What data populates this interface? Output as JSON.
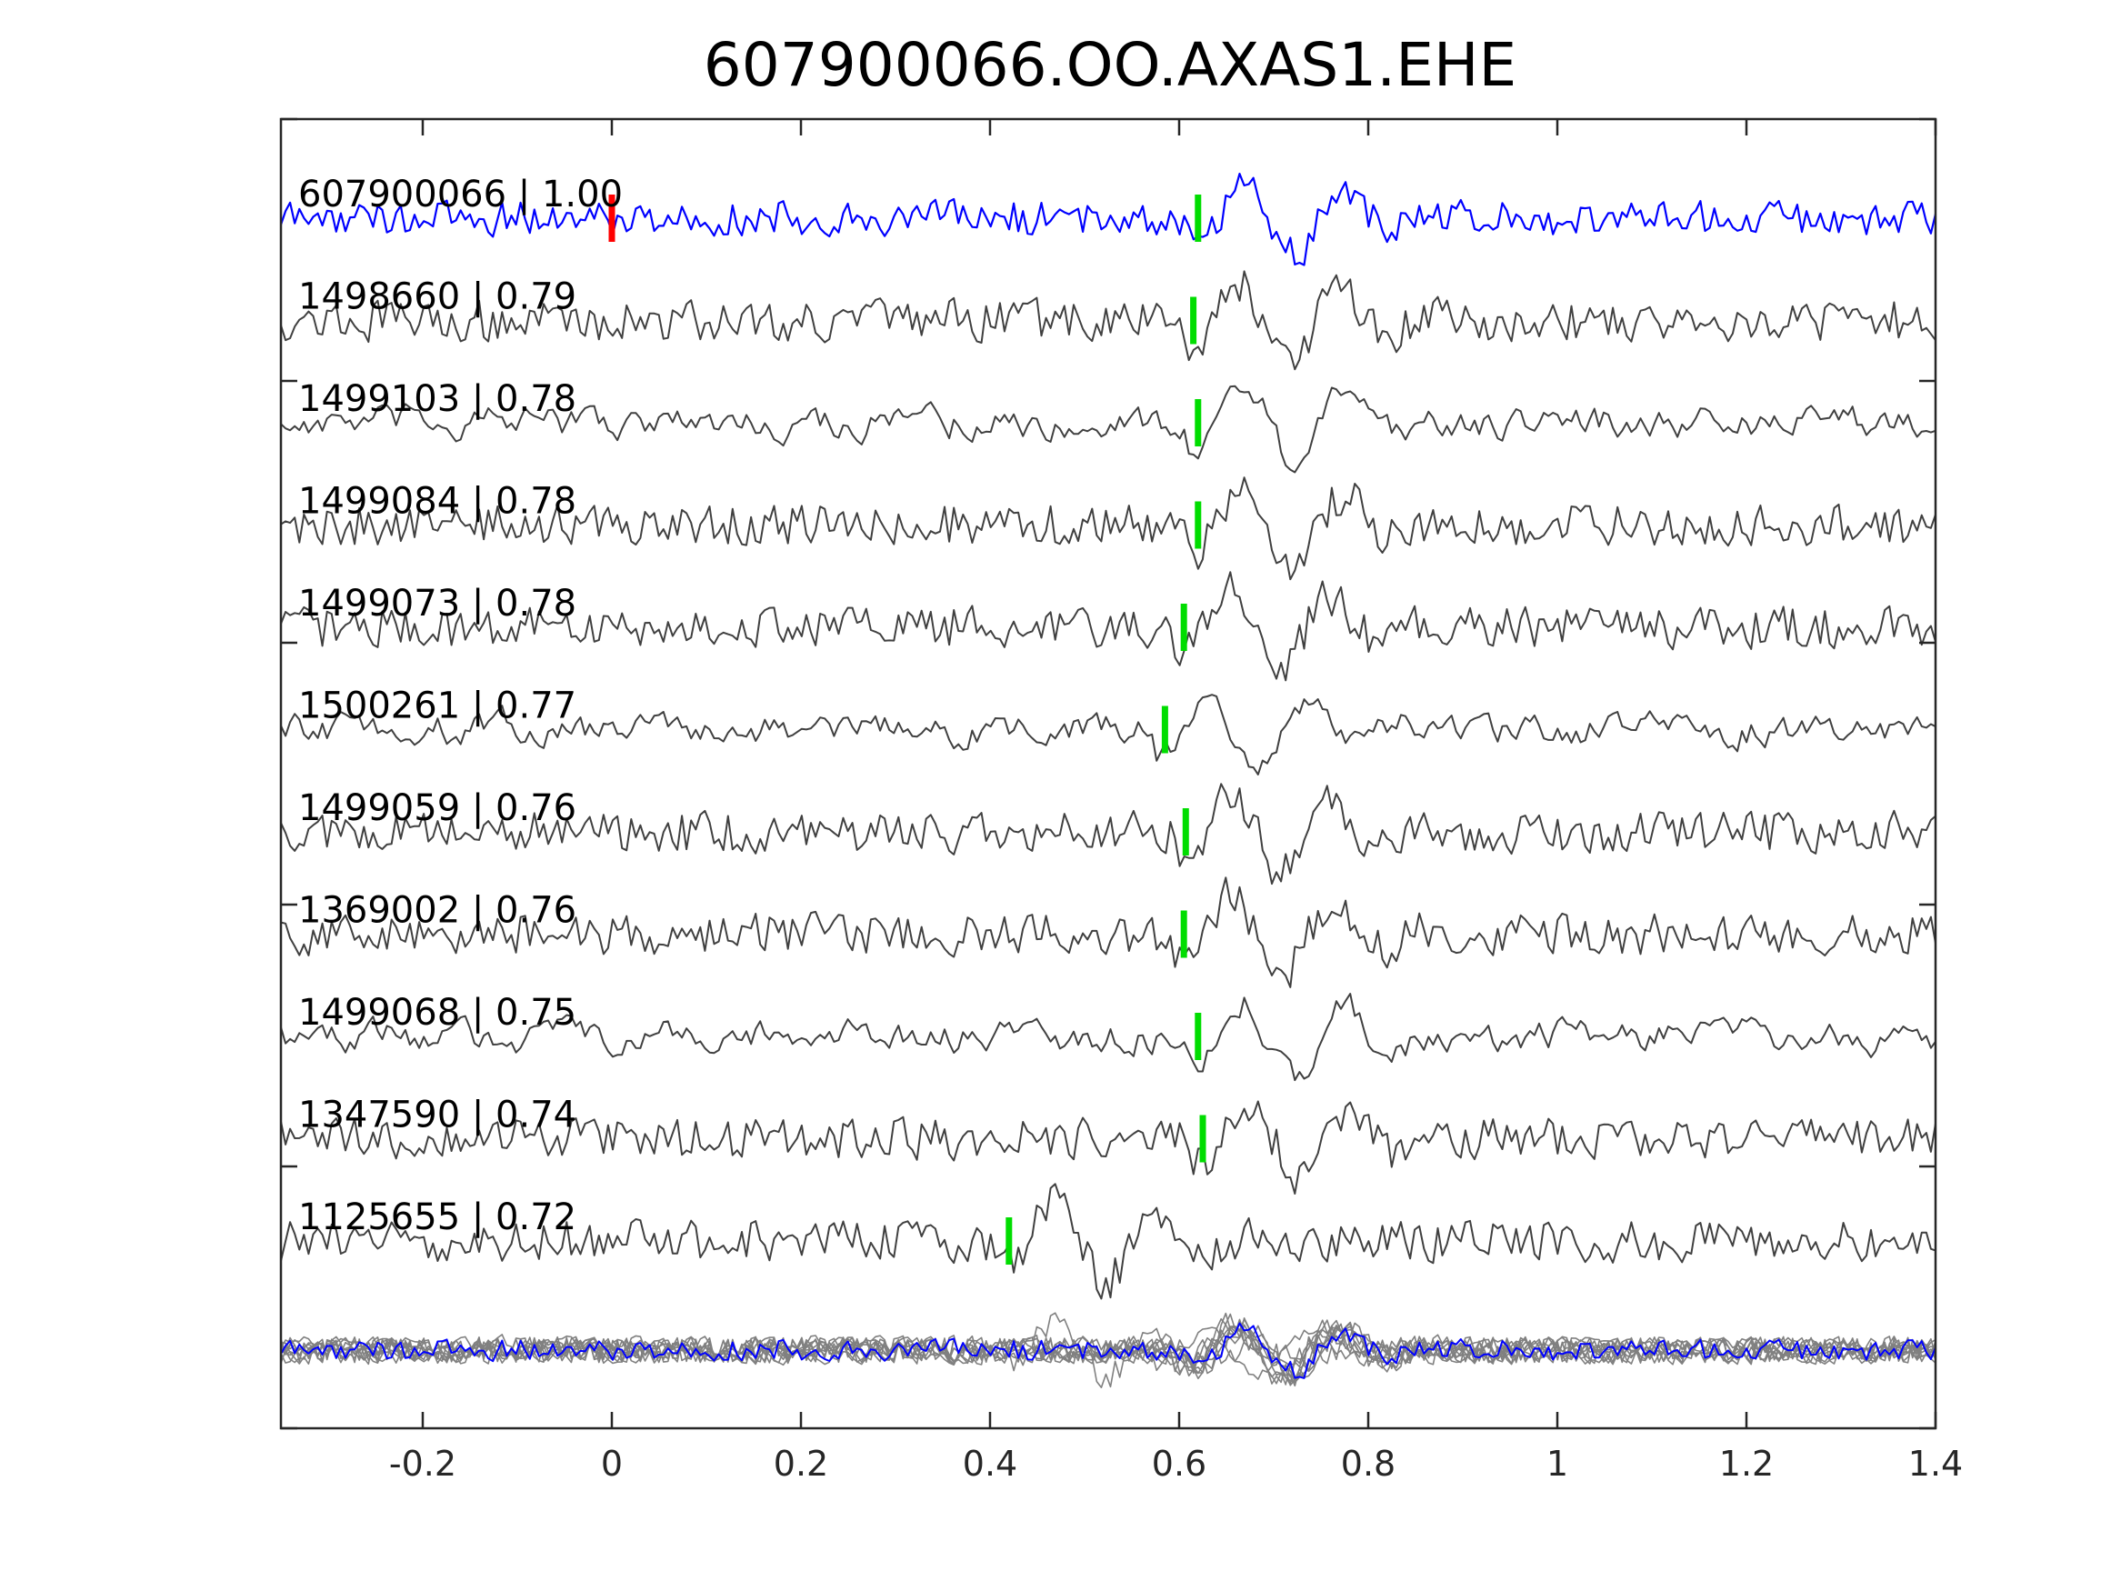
{
  "chart_data": {
    "type": "line",
    "title": "607900066.OO.AXAS1.EHE",
    "xlabel": "",
    "ylabel": "",
    "xlim": [
      -0.35,
      1.4
    ],
    "xticks": [
      -0.2,
      0,
      0.2,
      0.4,
      0.6,
      0.8,
      1,
      1.2,
      1.4
    ],
    "xtick_labels": [
      "-0.2",
      "0",
      "0.2",
      "0.4",
      "0.6",
      "0.8",
      "1",
      "1.2",
      "1.4"
    ],
    "grid": false,
    "colors": {
      "template": "#0000ff",
      "trace": "#404040",
      "stack": "#808080",
      "reference_pick": "#ff0000",
      "pick": "#00dd00"
    },
    "reference_pick": 0.0,
    "template": {
      "label": "607900066 | 1.00",
      "pick": 0.62
    },
    "traces": [
      {
        "label": "1498660 | 0.79",
        "pick": 0.615
      },
      {
        "label": "1499103 | 0.78",
        "pick": 0.62
      },
      {
        "label": "1499084 | 0.78",
        "pick": 0.62
      },
      {
        "label": "1499073 | 0.78",
        "pick": 0.605
      },
      {
        "label": "1500261 | 0.77",
        "pick": 0.585
      },
      {
        "label": "1499059 | 0.76",
        "pick": 0.607
      },
      {
        "label": "1369002 | 0.76",
        "pick": 0.605
      },
      {
        "label": "1499068 | 0.75",
        "pick": 0.62
      },
      {
        "label": "1347590 | 0.74",
        "pick": 0.625
      },
      {
        "label": "1125655 | 0.72",
        "pick": 0.42
      }
    ]
  }
}
